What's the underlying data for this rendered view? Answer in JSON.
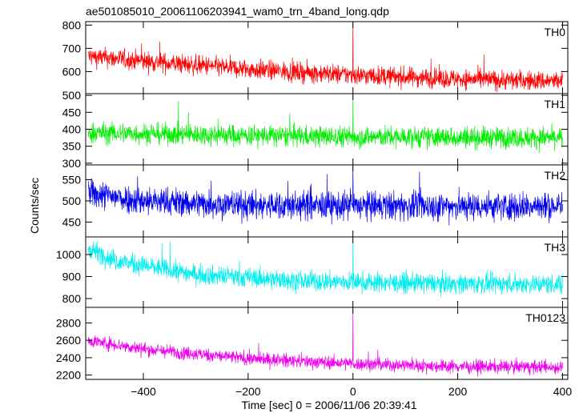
{
  "chart_data": {
    "type": "line",
    "title": "ae501085010_20061106203941_wam0_trn_4band_long.qdp",
    "xlabel": "Time [sec] 0 = 2006/11/06 20:39:41",
    "ylabel": "Counts/sec",
    "xlim": [
      -510,
      410
    ],
    "xticks": [
      -400,
      -200,
      0,
      200,
      400
    ],
    "xtick_labels": [
      "−400",
      "−200",
      "0",
      "200",
      "400"
    ],
    "panels": [
      {
        "name": "TH0",
        "color": "#ff0000",
        "ylim": [
          505,
          815
        ],
        "yticks": [
          600,
          700,
          800
        ],
        "trend": {
          "x": [
            -505,
            -400,
            -200,
            0,
            200,
            400
          ],
          "y": [
            665,
            645,
            610,
            585,
            568,
            558
          ]
        },
        "noise": 30,
        "spike": {
          "x": 0,
          "y": 815
        }
      },
      {
        "name": "TH1",
        "color": "#00ee00",
        "ylim": [
          295,
          505
        ],
        "yticks": [
          300,
          350,
          400,
          450,
          500
        ],
        "trend": {
          "x": [
            -505,
            -400,
            -200,
            0,
            200,
            400
          ],
          "y": [
            390,
            387,
            382,
            378,
            376,
            375
          ]
        },
        "noise": 22,
        "spike": {
          "x": 0,
          "y": 505
        }
      },
      {
        "name": "TH2",
        "color": "#0000ee",
        "ylim": [
          415,
          585
        ],
        "yticks": [
          450,
          500,
          550
        ],
        "trend": {
          "x": [
            -505,
            -400,
            -200,
            0,
            200,
            400
          ],
          "y": [
            518,
            500,
            490,
            488,
            488,
            487
          ]
        },
        "noise": 24,
        "spike": {
          "x": 0,
          "y": 585
        }
      },
      {
        "name": "TH3",
        "color": "#00eeee",
        "ylim": [
          760,
          1080
        ],
        "yticks": [
          800,
          900,
          1000
        ],
        "trend": {
          "x": [
            -505,
            -450,
            -300,
            -100,
            100,
            400
          ],
          "y": [
            1030,
            970,
            910,
            880,
            870,
            865
          ]
        },
        "noise": 32,
        "spike": {
          "x": 0,
          "y": 1080
        }
      },
      {
        "name": "TH0123",
        "color": "#ee00ee",
        "ylim": [
          2150,
          2980
        ],
        "yticks": [
          2200,
          2400,
          2600,
          2800
        ],
        "trend": {
          "x": [
            -505,
            -400,
            -200,
            0,
            200,
            400
          ],
          "y": [
            2600,
            2500,
            2390,
            2330,
            2300,
            2290
          ]
        },
        "noise": 55,
        "spike": {
          "x": 0,
          "y": 2980
        }
      }
    ]
  }
}
